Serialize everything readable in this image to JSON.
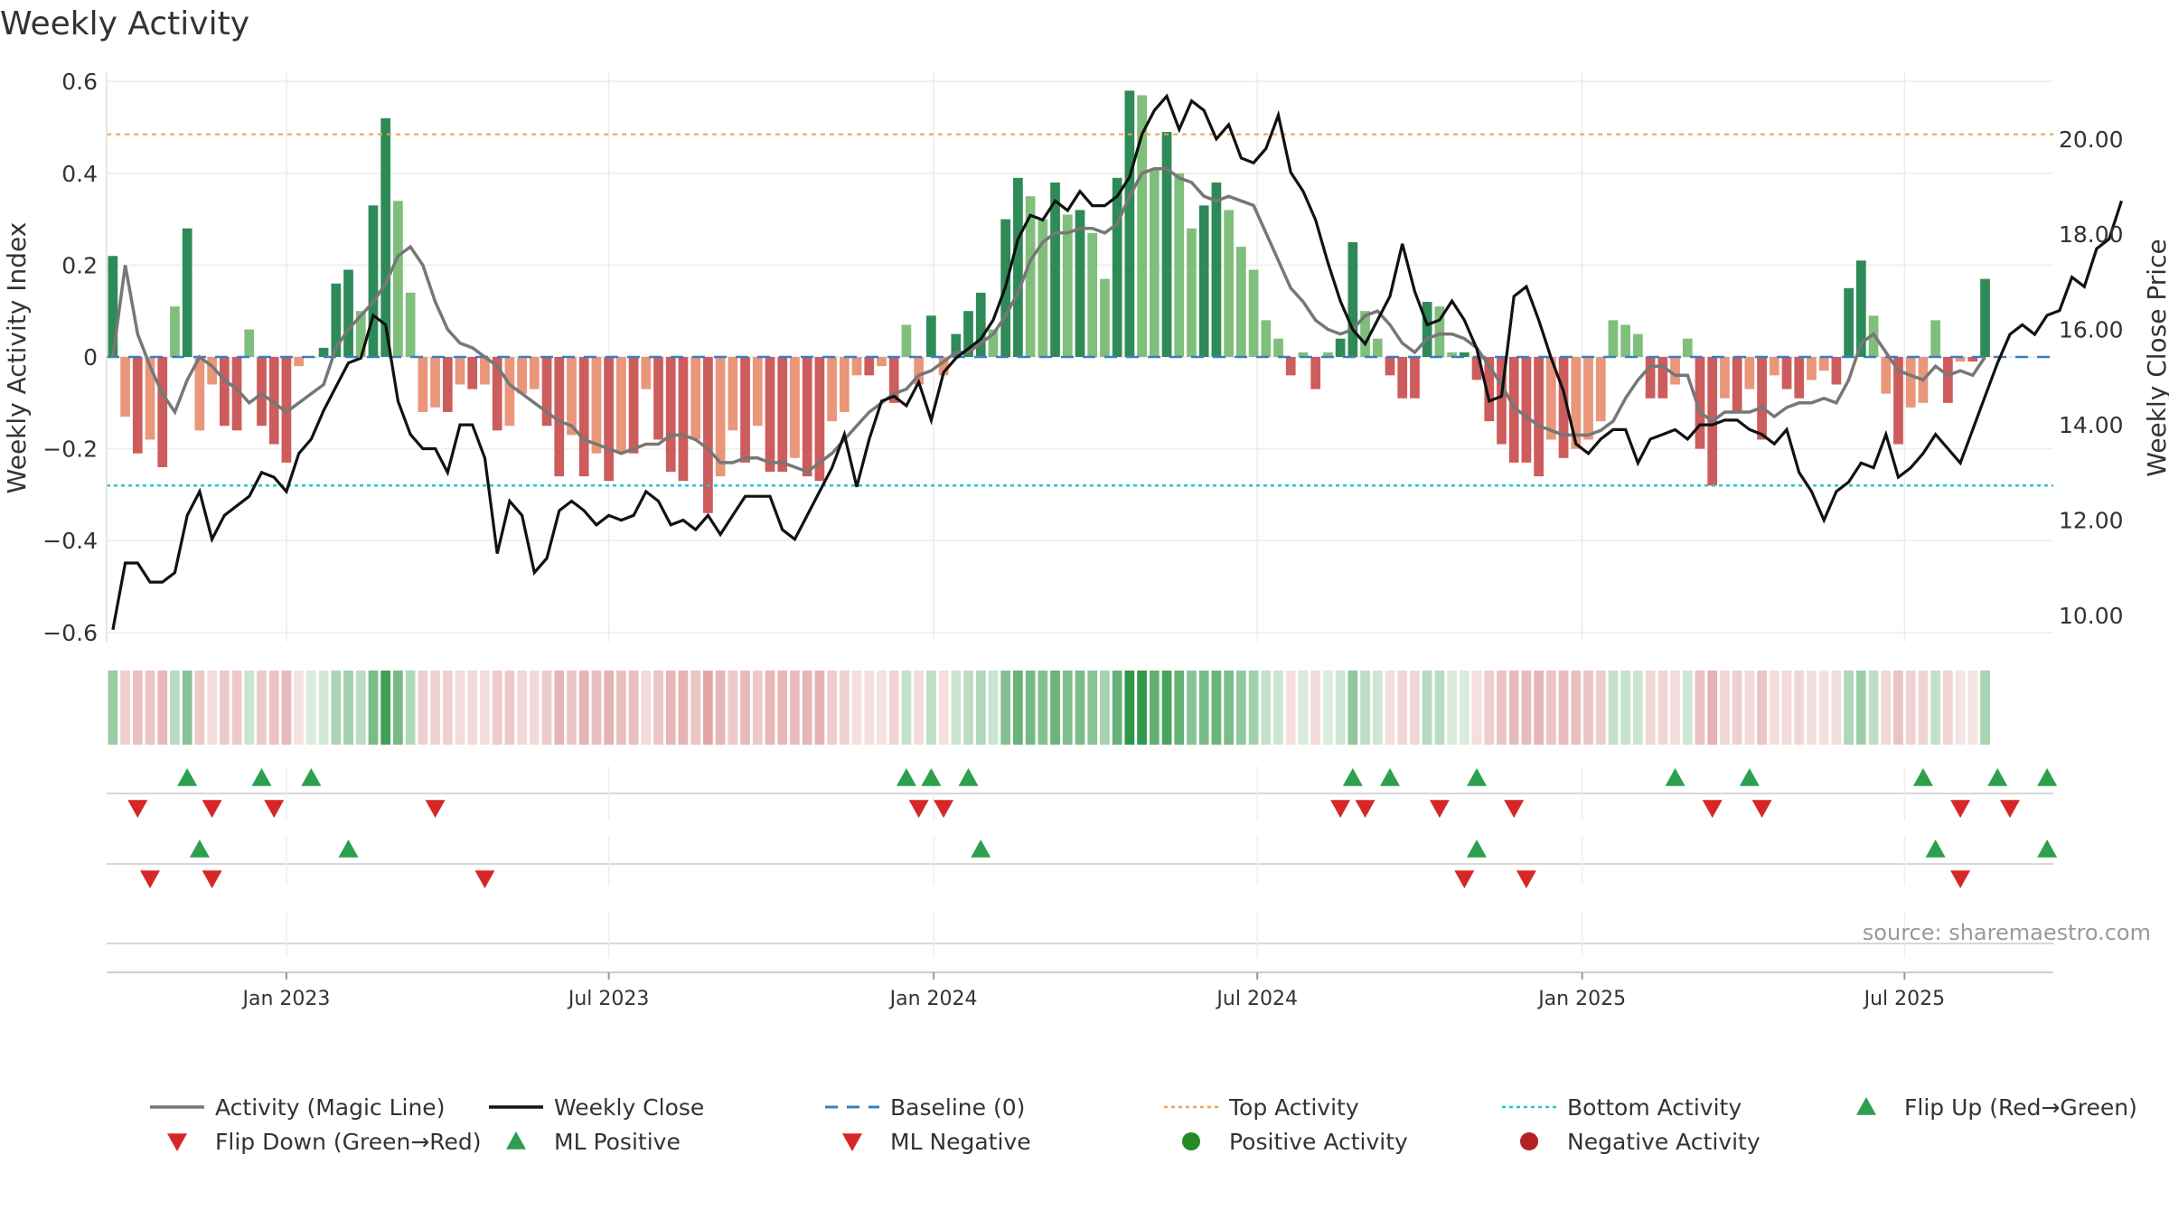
{
  "chart_data": {
    "type": "bar",
    "title": "Weekly Activity",
    "ylabel_left": "Weekly Activity Index",
    "ylabel_right": "Weekly Close Price",
    "yticks_left": [
      {
        "value": 0.6,
        "label": "0.6"
      },
      {
        "value": 0.4,
        "label": "0.4"
      },
      {
        "value": 0.2,
        "label": "0.2"
      },
      {
        "value": 0,
        "label": "0"
      },
      {
        "value": -0.2,
        "label": "−0.2"
      },
      {
        "value": -0.4,
        "label": "−0.4"
      },
      {
        "value": -0.6,
        "label": "−0.6"
      }
    ],
    "yticks_right": [
      {
        "value": 20,
        "label": "20.00"
      },
      {
        "value": 18,
        "label": "18.00"
      },
      {
        "value": 16,
        "label": "16.00"
      },
      {
        "value": 14,
        "label": "14.00"
      },
      {
        "value": 12,
        "label": "12.00"
      },
      {
        "value": 10,
        "label": "10.00"
      }
    ],
    "ylim_left": [
      -0.62,
      0.62
    ],
    "ylim_right": [
      9.45,
      21.4
    ],
    "x_week_range": [
      0,
      157
    ],
    "xticks": [
      {
        "week": 14.5,
        "label": "Jan 2023"
      },
      {
        "week": 40.5,
        "label": "Jul 2023"
      },
      {
        "week": 66.7,
        "label": "Jan 2024"
      },
      {
        "week": 92.8,
        "label": "Jul 2024"
      },
      {
        "week": 119,
        "label": "Jan 2025"
      },
      {
        "week": 145,
        "label": "Jul 2025"
      }
    ],
    "top_activity": 0.485,
    "bottom_activity": -0.28,
    "baseline": 0,
    "activity_values": [
      0.22,
      -0.13,
      -0.21,
      -0.18,
      -0.24,
      0.11,
      0.28,
      -0.16,
      -0.06,
      -0.15,
      -0.16,
      0.06,
      -0.15,
      -0.19,
      -0.23,
      -0.02,
      0.0,
      0.02,
      0.16,
      0.19,
      0.1,
      0.33,
      0.52,
      0.34,
      0.14,
      -0.12,
      -0.11,
      -0.12,
      -0.06,
      -0.07,
      -0.06,
      -0.16,
      -0.15,
      -0.08,
      -0.07,
      -0.15,
      -0.26,
      -0.17,
      -0.26,
      -0.21,
      -0.27,
      -0.21,
      -0.21,
      -0.07,
      -0.18,
      -0.25,
      -0.27,
      -0.18,
      -0.34,
      -0.26,
      -0.16,
      -0.23,
      -0.15,
      -0.25,
      -0.25,
      -0.22,
      -0.26,
      -0.27,
      -0.14,
      -0.12,
      -0.04,
      -0.04,
      -0.02,
      -0.1,
      0.07,
      -0.06,
      0.09,
      -0.04,
      0.05,
      0.1,
      0.14,
      0.06,
      0.3,
      0.39,
      0.35,
      0.3,
      0.38,
      0.31,
      0.32,
      0.27,
      0.17,
      0.39,
      0.58,
      0.57,
      0.41,
      0.49,
      0.4,
      0.28,
      0.33,
      0.38,
      0.32,
      0.24,
      0.19,
      0.08,
      0.04,
      -0.04,
      0.01,
      -0.07,
      0.01,
      0.04,
      0.25,
      0.1,
      0.04,
      -0.04,
      -0.09,
      -0.09,
      0.12,
      0.11,
      0.01,
      0.01,
      -0.05,
      -0.14,
      -0.19,
      -0.23,
      -0.23,
      -0.26,
      -0.18,
      -0.22,
      -0.2,
      -0.18,
      -0.14,
      0.08,
      0.07,
      0.05,
      -0.09,
      -0.09,
      -0.06,
      0.04,
      -0.2,
      -0.28,
      -0.09,
      -0.12,
      -0.07,
      -0.18,
      -0.04,
      -0.07,
      -0.09,
      -0.05,
      -0.03,
      -0.06,
      0.15,
      0.21,
      0.09,
      -0.08,
      -0.19,
      -0.11,
      -0.1,
      0.08,
      -0.1,
      -0.01,
      -0.01,
      0.17
    ],
    "close_values": [
      9.7,
      11.1,
      11.1,
      10.7,
      10.7,
      10.9,
      12.1,
      12.6,
      11.6,
      12.1,
      12.3,
      12.5,
      13.0,
      12.9,
      12.6,
      13.4,
      13.7,
      14.3,
      14.8,
      15.3,
      15.4,
      16.3,
      16.1,
      14.5,
      13.8,
      13.5,
      13.5,
      13.0,
      14.0,
      14.0,
      13.3,
      11.3,
      12.4,
      12.1,
      10.9,
      11.2,
      12.2,
      12.4,
      12.2,
      11.9,
      12.1,
      12.0,
      12.1,
      12.6,
      12.4,
      11.9,
      12.0,
      11.8,
      12.1,
      11.7,
      12.1,
      12.5,
      12.5,
      12.5,
      11.8,
      11.6,
      12.1,
      12.6,
      13.1,
      13.8,
      12.7,
      13.7,
      14.5,
      14.6,
      14.4,
      14.9,
      14.1,
      15.1,
      15.4,
      15.6,
      15.8,
      16.2,
      16.9,
      17.9,
      18.4,
      18.3,
      18.7,
      18.5,
      18.9,
      18.6,
      18.6,
      18.8,
      19.2,
      20.1,
      20.6,
      20.9,
      20.2,
      20.8,
      20.6,
      20.0,
      20.3,
      19.6,
      19.5,
      19.8,
      20.5,
      19.3,
      18.9,
      18.3,
      17.4,
      16.6,
      16.0,
      15.7,
      16.2,
      16.7,
      17.8,
      16.8,
      16.1,
      16.2,
      16.6,
      16.2,
      15.6,
      14.5,
      14.6,
      16.7,
      16.9,
      16.2,
      15.4,
      14.7,
      13.6,
      13.4,
      13.7,
      13.9,
      13.9,
      13.2,
      13.7,
      13.8,
      13.9,
      13.7,
      14.0,
      14.0,
      14.1,
      14.1,
      13.9,
      13.8,
      13.6,
      13.9,
      13.0,
      12.6,
      12.0,
      12.6,
      12.8,
      13.2,
      13.1,
      13.8,
      12.9,
      13.1,
      13.4,
      13.8,
      13.5,
      13.2,
      13.9,
      14.6,
      15.3,
      15.9,
      16.1,
      15.9,
      16.3,
      16.4,
      17.1,
      16.9,
      17.7,
      17.9,
      18.7
    ],
    "magic_line_values": [
      0.0,
      0.2,
      0.05,
      -0.02,
      -0.08,
      -0.12,
      -0.05,
      0.0,
      -0.02,
      -0.05,
      -0.07,
      -0.1,
      -0.08,
      -0.1,
      -0.12,
      -0.1,
      -0.08,
      -0.06,
      0.02,
      0.06,
      0.09,
      0.12,
      0.16,
      0.22,
      0.24,
      0.2,
      0.12,
      0.06,
      0.03,
      0.02,
      0.0,
      -0.02,
      -0.06,
      -0.08,
      -0.1,
      -0.12,
      -0.14,
      -0.15,
      -0.18,
      -0.19,
      -0.2,
      -0.21,
      -0.2,
      -0.19,
      -0.19,
      -0.17,
      -0.17,
      -0.18,
      -0.2,
      -0.23,
      -0.23,
      -0.22,
      -0.22,
      -0.23,
      -0.23,
      -0.24,
      -0.25,
      -0.23,
      -0.21,
      -0.18,
      -0.15,
      -0.12,
      -0.1,
      -0.08,
      -0.07,
      -0.04,
      -0.03,
      -0.01,
      0.01,
      0.01,
      0.03,
      0.05,
      0.09,
      0.14,
      0.21,
      0.25,
      0.27,
      0.27,
      0.28,
      0.28,
      0.27,
      0.29,
      0.35,
      0.4,
      0.41,
      0.41,
      0.39,
      0.38,
      0.35,
      0.34,
      0.35,
      0.34,
      0.33,
      0.27,
      0.21,
      0.15,
      0.12,
      0.08,
      0.06,
      0.05,
      0.06,
      0.09,
      0.1,
      0.07,
      0.03,
      0.01,
      0.04,
      0.05,
      0.05,
      0.04,
      0.02,
      -0.02,
      -0.06,
      -0.11,
      -0.13,
      -0.15,
      -0.16,
      -0.17,
      -0.17,
      -0.17,
      -0.16,
      -0.14,
      -0.09,
      -0.05,
      -0.02,
      -0.02,
      -0.04,
      -0.04,
      -0.12,
      -0.14,
      -0.12,
      -0.12,
      -0.12,
      -0.11,
      -0.13,
      -0.11,
      -0.1,
      -0.1,
      -0.09,
      -0.1,
      -0.05,
      0.03,
      0.05,
      0.01,
      -0.03,
      -0.04,
      -0.05,
      -0.02,
      -0.04,
      -0.03,
      -0.04,
      0.0
    ],
    "signal_rows": {
      "flip_up_weeks": [
        6,
        12,
        16,
        64,
        66,
        69,
        100,
        103,
        110,
        126,
        132,
        146,
        152,
        156
      ],
      "flip_down_weeks": [
        2,
        8,
        13,
        26,
        65,
        67,
        99,
        101,
        107,
        113,
        129,
        133,
        149,
        153
      ],
      "ml_positive_weeks": [
        7,
        19,
        70,
        110,
        147,
        156
      ],
      "ml_negative_weeks": [
        3,
        8,
        30,
        109,
        114,
        149
      ]
    },
    "source_text": "source: sharemaestro.com",
    "legend": [
      {
        "label": "Activity (Magic Line)",
        "symbol": "line",
        "color": "#777777"
      },
      {
        "label": "Weekly Close",
        "symbol": "line",
        "color": "#111111"
      },
      {
        "label": "Baseline (0)",
        "symbol": "dash",
        "color": "#3a7fc1"
      },
      {
        "label": "Top Activity",
        "symbol": "dot",
        "color": "#f0a050"
      },
      {
        "label": "Bottom Activity",
        "symbol": "dot",
        "color": "#26c6d0"
      },
      {
        "label": "Flip Up (Red→Green)",
        "symbol": "tri-up",
        "color": "#2ca04c"
      },
      {
        "label": "Flip Down (Green→Red)",
        "symbol": "tri-down",
        "color": "#d62728"
      },
      {
        "label": "ML Positive",
        "symbol": "tri-up",
        "color": "#2ca04c"
      },
      {
        "label": "ML Negative",
        "symbol": "tri-down",
        "color": "#d62728"
      },
      {
        "label": "Positive Activity",
        "symbol": "circle",
        "color": "#238b23"
      },
      {
        "label": "Negative Activity",
        "symbol": "circle",
        "color": "#b22222"
      }
    ],
    "colors": {
      "pos_dark": "#2e8b57",
      "pos_light": "#7fbf7b",
      "neg_dark": "#cd5c5c",
      "neg_light": "#e9967a",
      "up_marker": "#2ca04c",
      "down_marker": "#d62728",
      "grid": "#ececec"
    }
  }
}
